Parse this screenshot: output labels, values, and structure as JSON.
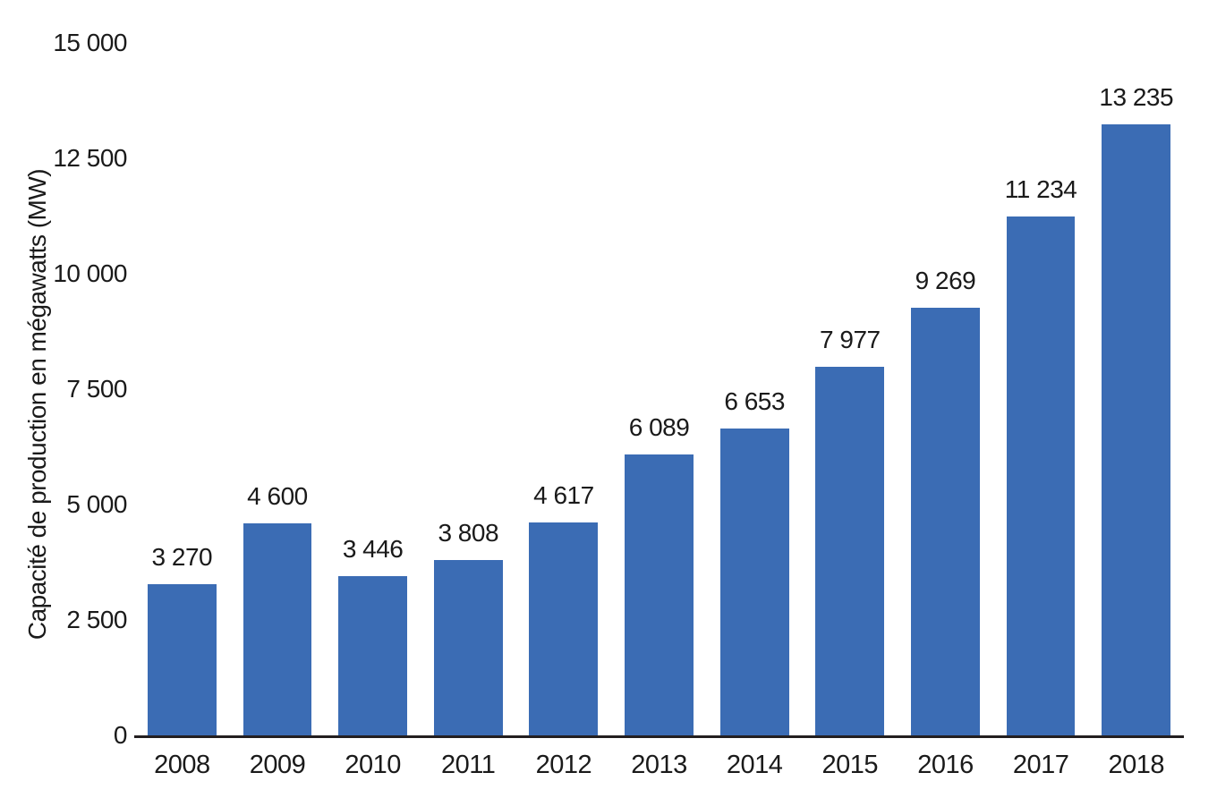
{
  "page": {
    "background_color": "#ffffff",
    "text_color": "#1a1a1a"
  },
  "chart_data": {
    "type": "bar",
    "title": "",
    "xlabel": "",
    "ylabel": "Capacité de production en mégawatts (MW)",
    "ylim": [
      0,
      15000
    ],
    "grid": false,
    "legend": false,
    "bar_color": "#3b6cb4",
    "axis_color": "#231f20",
    "categories": [
      "2008",
      "2009",
      "2010",
      "2011",
      "2012",
      "2013",
      "2014",
      "2015",
      "2016",
      "2017",
      "2018"
    ],
    "values": [
      3270,
      4600,
      3446,
      3808,
      4617,
      6089,
      6653,
      7977,
      9269,
      11234,
      13235
    ],
    "value_labels": [
      "3 270",
      "4 600",
      "3 446",
      "3 808",
      "4 617",
      "6 089",
      "6 653",
      "7 977",
      "9 269",
      "11 234",
      "13 235"
    ],
    "yticks": {
      "values": [
        0,
        2500,
        5000,
        7500,
        10000,
        12500,
        15000
      ],
      "labels": [
        "0",
        "2 500",
        "5 000",
        "7 500",
        "10 000",
        "12 500",
        "15 000"
      ]
    }
  }
}
